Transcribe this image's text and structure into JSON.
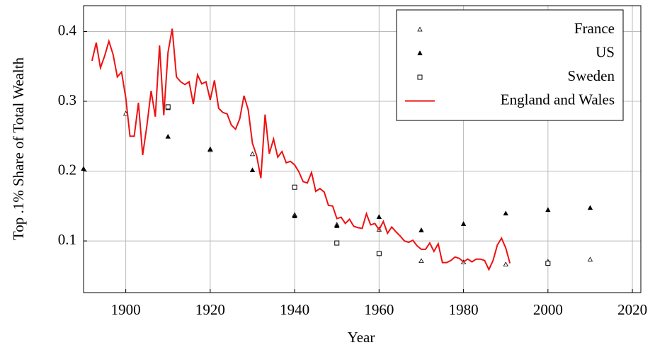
{
  "chart_data": {
    "type": "scatter-line",
    "x_label": "Year",
    "y_label": "Top .1% Share of Total Wealth",
    "xlim": [
      1890,
      2022
    ],
    "ylim": [
      0.026,
      0.437
    ],
    "xticks": [
      1900,
      1920,
      1940,
      1960,
      1980,
      2000,
      2020
    ],
    "yticks": [
      0.1,
      0.2,
      0.3,
      0.4
    ],
    "grid": true,
    "legend": "top-right",
    "series": [
      {
        "name": "France",
        "color": "#000000",
        "marker": "triangle-open",
        "x": [
          1900,
          1910,
          1920,
          1930,
          1940,
          1950,
          1960,
          1970,
          1980,
          1990,
          2000,
          2010
        ],
        "values": [
          0.282,
          0.29,
          0.23,
          0.224,
          0.137,
          0.123,
          0.116,
          0.071,
          0.069,
          0.066,
          0.07,
          0.073
        ]
      },
      {
        "name": "US",
        "color": "#000000",
        "marker": "triangle",
        "x": [
          1890,
          1910,
          1920,
          1930,
          1940,
          1950,
          1960,
          1970,
          1980,
          1990,
          2000,
          2010
        ],
        "values": [
          0.203,
          0.249,
          0.231,
          0.201,
          0.135,
          0.121,
          0.134,
          0.115,
          0.124,
          0.139,
          0.144,
          0.147
        ]
      },
      {
        "name": "Sweden",
        "color": "#000000",
        "marker": "square-open",
        "x": [
          1910,
          1940,
          1950,
          1960,
          2000
        ],
        "values": [
          0.292,
          0.177,
          0.097,
          0.082,
          0.068
        ]
      },
      {
        "name": "England and Wales",
        "color": "#ee1111",
        "marker": "line",
        "x": [
          1892,
          1893,
          1894,
          1895,
          1896,
          1897,
          1898,
          1899,
          1900,
          1901,
          1902,
          1903,
          1904,
          1905,
          1906,
          1907,
          1908,
          1909,
          1910,
          1911,
          1912,
          1913,
          1914,
          1915,
          1916,
          1917,
          1918,
          1919,
          1920,
          1921,
          1922,
          1923,
          1924,
          1925,
          1926,
          1927,
          1928,
          1929,
          1930,
          1931,
          1932,
          1933,
          1934,
          1935,
          1936,
          1937,
          1938,
          1939,
          1940,
          1941,
          1942,
          1943,
          1944,
          1945,
          1946,
          1947,
          1948,
          1949,
          1950,
          1951,
          1952,
          1953,
          1954,
          1955,
          1956,
          1957,
          1958,
          1959,
          1960,
          1961,
          1962,
          1963,
          1964,
          1965,
          1966,
          1967,
          1968,
          1969,
          1970,
          1971,
          1972,
          1973,
          1974,
          1975,
          1976,
          1977,
          1978,
          1979,
          1980,
          1981,
          1982,
          1983,
          1984,
          1985,
          1986,
          1987,
          1988,
          1989,
          1990,
          1991
        ],
        "values": [
          0.358,
          0.384,
          0.348,
          0.365,
          0.386,
          0.367,
          0.335,
          0.342,
          0.305,
          0.25,
          0.25,
          0.298,
          0.223,
          0.265,
          0.315,
          0.278,
          0.38,
          0.28,
          0.37,
          0.404,
          0.335,
          0.328,
          0.324,
          0.328,
          0.296,
          0.338,
          0.325,
          0.328,
          0.302,
          0.33,
          0.29,
          0.284,
          0.282,
          0.266,
          0.26,
          0.275,
          0.308,
          0.288,
          0.24,
          0.222,
          0.19,
          0.281,
          0.225,
          0.246,
          0.22,
          0.228,
          0.212,
          0.214,
          0.209,
          0.199,
          0.185,
          0.183,
          0.198,
          0.171,
          0.175,
          0.17,
          0.151,
          0.15,
          0.132,
          0.134,
          0.125,
          0.131,
          0.121,
          0.119,
          0.118,
          0.139,
          0.123,
          0.125,
          0.116,
          0.128,
          0.111,
          0.12,
          0.113,
          0.107,
          0.1,
          0.098,
          0.101,
          0.093,
          0.088,
          0.088,
          0.097,
          0.085,
          0.096,
          0.069,
          0.069,
          0.072,
          0.077,
          0.075,
          0.07,
          0.074,
          0.07,
          0.074,
          0.074,
          0.072,
          0.059,
          0.072,
          0.094,
          0.104,
          0.09,
          0.068
        ]
      }
    ]
  }
}
